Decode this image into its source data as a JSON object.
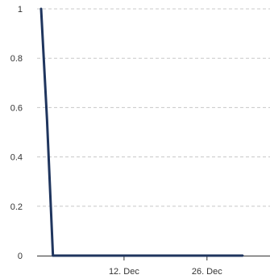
{
  "chart_data": {
    "type": "line",
    "title": "",
    "xlabel": "",
    "ylabel": "",
    "x_type": "date",
    "x_ticks": [
      "12. Dec",
      "26. Dec"
    ],
    "y_ticks": [
      "0",
      "0.2",
      "0.4",
      "0.6",
      "0.8",
      "1"
    ],
    "ylim": [
      0,
      1
    ],
    "xlim": [
      "2023-11-28",
      "2024-01-01"
    ],
    "grid": true,
    "legend": "none",
    "series": [
      {
        "color": "#1f355e",
        "points": [
          {
            "x": "2023-11-28",
            "y": 1
          },
          {
            "x": "2023-11-29",
            "y": 0.55
          },
          {
            "x": "2023-11-30",
            "y": 0
          },
          {
            "x": "2024-01-01",
            "y": 0
          }
        ]
      }
    ]
  }
}
